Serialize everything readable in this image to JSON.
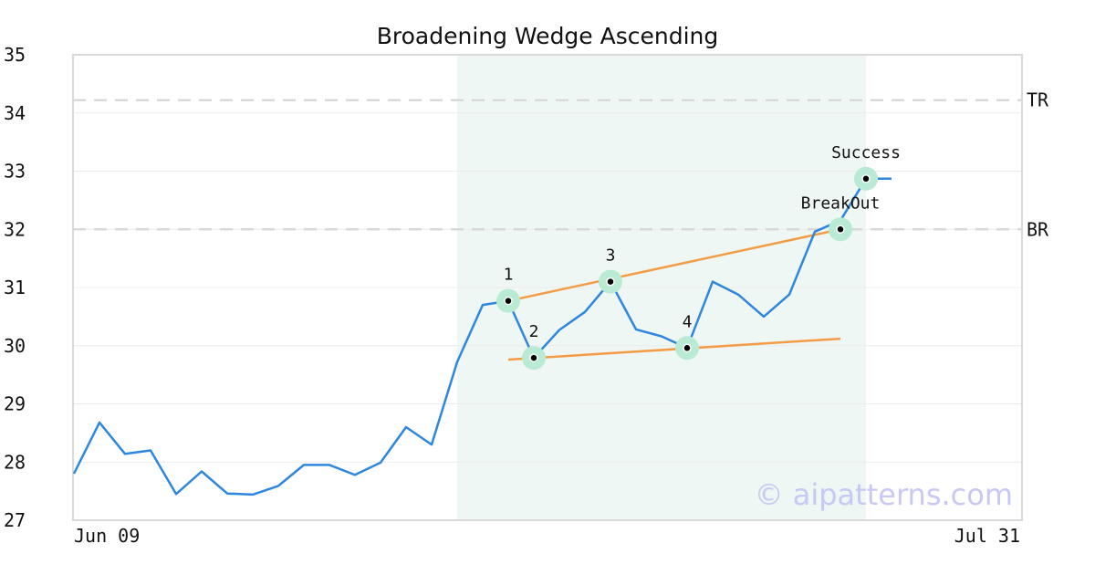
{
  "chart_data": {
    "type": "line",
    "title": "Broadening Wedge Ascending",
    "watermark": "© aipatterns.com",
    "ylim": [
      27,
      35
    ],
    "yticks": [
      "27",
      "28",
      "29",
      "30",
      "31",
      "32",
      "33",
      "34",
      "35"
    ],
    "x_labels": {
      "start": "Jun 09",
      "end": "Jul 31"
    },
    "grid": true,
    "series": [
      {
        "color": "#2e86de",
        "values": [
          27.8,
          28.68,
          28.14,
          28.2,
          27.45,
          27.84,
          27.46,
          27.44,
          27.59,
          27.95,
          27.95,
          27.78,
          27.99,
          28.6,
          28.3,
          29.72,
          30.7,
          30.77,
          29.79,
          30.27,
          30.58,
          31.1,
          30.28,
          30.16,
          29.96,
          31.1,
          30.88,
          30.5,
          30.88,
          31.96,
          32.15,
          32.87,
          32.87
        ]
      }
    ],
    "highlight_region": {
      "from_index": 15,
      "to_index": 31,
      "color": "#eef7f3"
    },
    "reference_lines": [
      {
        "label": "TR",
        "value": 34.22,
        "color": "#d9d9d9"
      },
      {
        "label": "BR",
        "value": 32.0,
        "color": "#d9d9d9"
      }
    ],
    "trendlines": [
      {
        "color": "#f39c45",
        "from": {
          "index": 17,
          "value": 30.77
        },
        "to": {
          "index": 30,
          "value": 32.0
        }
      },
      {
        "color": "#f39c45",
        "from": {
          "index": 17,
          "value": 29.76
        },
        "to": {
          "index": 30,
          "value": 30.12
        }
      }
    ],
    "markers": [
      {
        "label": "1",
        "index": 17,
        "value": 30.77,
        "label_side": "above"
      },
      {
        "label": "2",
        "index": 18,
        "value": 29.79,
        "label_side": "above"
      },
      {
        "label": "3",
        "index": 21,
        "value": 31.1,
        "label_side": "above"
      },
      {
        "label": "4",
        "index": 24,
        "value": 29.96,
        "label_side": "above"
      },
      {
        "label": "BreakOut",
        "index": 30,
        "value": 32.0,
        "label_side": "above"
      },
      {
        "label": "Success",
        "index": 31,
        "value": 32.87,
        "label_side": "above"
      }
    ],
    "colors": {
      "marker_halo": "#b9ead4",
      "marker_dot": "#000000",
      "frame": "#d9d9d9",
      "grid": "#ececec"
    }
  }
}
